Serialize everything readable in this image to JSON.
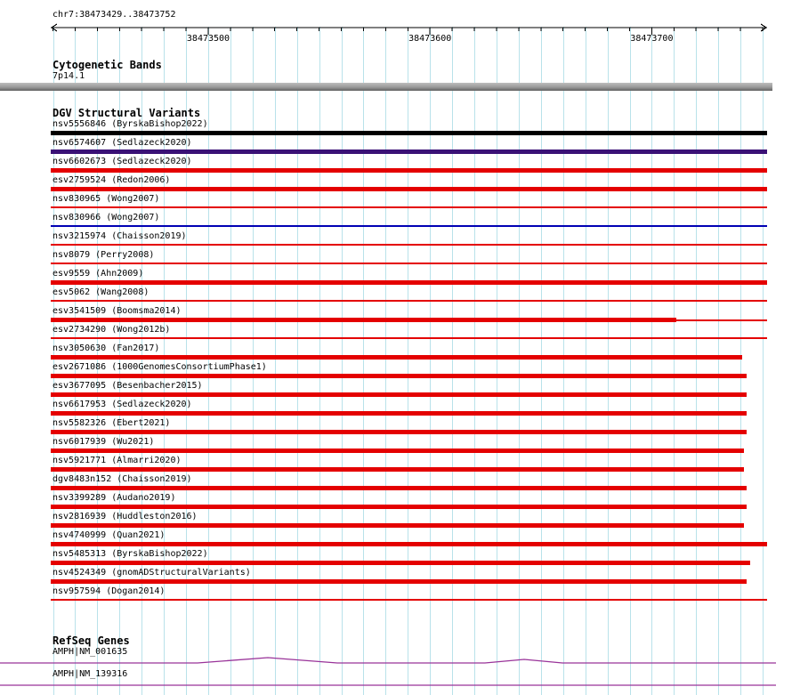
{
  "colors": {
    "red": "#e40000",
    "black": "#000000",
    "purple": "#3a1176",
    "blue": "#0000b4",
    "gene": "#993399",
    "grid": "#b9e2ea"
  },
  "ruler": {
    "region": "chr7:38473429..38473752",
    "start": 38473429,
    "end": 38473752,
    "minor_tick_bp": 10,
    "major_tick_bp": 100,
    "ticks": [
      {
        "pos": 38473500,
        "label": "38473500"
      },
      {
        "pos": 38473600,
        "label": "38473600"
      },
      {
        "pos": 38473700,
        "label": "38473700"
      }
    ]
  },
  "sections": {
    "cytogenetic": {
      "title": "Cytogenetic Bands",
      "band": {
        "label": "7p14.1"
      }
    },
    "dgv": {
      "title": "DGV Structural Variants",
      "variants": [
        {
          "label": "nsv5556846 (ByrskaBishop2022)",
          "color": "#000000",
          "kind": "thick",
          "end": 1.0
        },
        {
          "label": "nsv6574607 (Sedlazeck2020)",
          "color": "#3a1176",
          "kind": "thick",
          "end": 1.0
        },
        {
          "label": "nsv6602673 (Sedlazeck2020)",
          "color": "#e40000",
          "kind": "thick",
          "end": 1.0
        },
        {
          "label": "esv2759524 (Redon2006)",
          "color": "#e40000",
          "kind": "thick",
          "end": 1.0
        },
        {
          "label": "nsv830965 (Wong2007)",
          "color": "#e40000",
          "kind": "thin",
          "end": 1.0
        },
        {
          "label": "nsv830966 (Wong2007)",
          "color": "#0000b4",
          "kind": "thin",
          "end": 1.0
        },
        {
          "label": "nsv3215974 (Chaisson2019)",
          "color": "#e40000",
          "kind": "thin",
          "end": 1.0
        },
        {
          "label": "nsv8079 (Perry2008)",
          "color": "#e40000",
          "kind": "thin",
          "end": 1.0
        },
        {
          "label": "esv9559 (Ahn2009)",
          "color": "#e40000",
          "kind": "thick",
          "end": 1.0
        },
        {
          "label": "esv5062 (Wang2008)",
          "color": "#e40000",
          "kind": "thin",
          "end": 1.0
        },
        {
          "label": "esv3541509 (Boomsma2014)",
          "color": "#e40000",
          "kind": "thick",
          "end": 0.873,
          "tail_end": 1.0
        },
        {
          "label": "esv2734290 (Wong2012b)",
          "color": "#e40000",
          "kind": "thin",
          "end": 1.0
        },
        {
          "label": "nsv3050630 (Fan2017)",
          "color": "#e40000",
          "kind": "thick",
          "end": 0.965
        },
        {
          "label": "esv2671086 (1000GenomesConsortiumPhase1)",
          "color": "#e40000",
          "kind": "thick",
          "end": 0.972
        },
        {
          "label": "esv3677095 (Besenbacher2015)",
          "color": "#e40000",
          "kind": "thick",
          "end": 0.972
        },
        {
          "label": "nsv6617953 (Sedlazeck2020)",
          "color": "#e40000",
          "kind": "thick",
          "end": 0.972
        },
        {
          "label": "nsv5582326 (Ebert2021)",
          "color": "#e40000",
          "kind": "thick",
          "end": 0.972
        },
        {
          "label": "nsv6017939 (Wu2021)",
          "color": "#e40000",
          "kind": "thick",
          "end": 0.968
        },
        {
          "label": "nsv5921771 (Almarri2020)",
          "color": "#e40000",
          "kind": "thick",
          "end": 0.968
        },
        {
          "label": "dgv8483n152 (Chaisson2019)",
          "color": "#e40000",
          "kind": "thick",
          "end": 0.972
        },
        {
          "label": "nsv3399289 (Audano2019)",
          "color": "#e40000",
          "kind": "thick",
          "end": 0.972
        },
        {
          "label": "nsv2816939 (Huddleston2016)",
          "color": "#e40000",
          "kind": "thick",
          "end": 0.968
        },
        {
          "label": "nsv4740999 (Quan2021)",
          "color": "#e40000",
          "kind": "thick",
          "end": 1.0
        },
        {
          "label": "nsv5485313 (ByrskaBishop2022)",
          "color": "#e40000",
          "kind": "thick",
          "end": 0.976
        },
        {
          "label": "nsv4524349 (gnomADStructuralVariants)",
          "color": "#e40000",
          "kind": "thick",
          "end": 0.972
        },
        {
          "label": "nsv957594 (Dogan2014)",
          "color": "#e40000",
          "kind": "thin",
          "end": 1.0
        }
      ]
    },
    "refseq": {
      "title": "RefSeq Genes",
      "genes": [
        {
          "label": "AMPH|NM_001635",
          "peaks": [
            {
              "apex": 0.345,
              "half": 0.09,
              "h": 6
            },
            {
              "apex": 0.675,
              "half": 0.05,
              "h": 4
            }
          ]
        },
        {
          "label": "AMPH|NM_139316",
          "peaks": []
        }
      ]
    }
  }
}
